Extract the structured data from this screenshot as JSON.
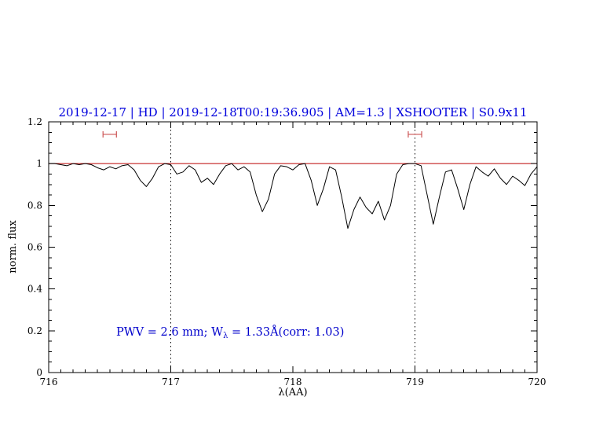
{
  "chart_data": {
    "type": "line",
    "title": "2019-12-17 | HD | 2019-12-18T00:19:36.905 | AM=1.3 | XSHOOTER | S0.9x11",
    "title_color": "#0000dd",
    "xlabel": "λ(AA)",
    "ylabel": "norm. flux",
    "xlim": [
      716,
      720
    ],
    "ylim": [
      0,
      1.2
    ],
    "xticks_major": [
      716,
      717,
      718,
      719,
      720
    ],
    "xtick_labels": [
      "716",
      "717",
      "718",
      "719",
      "720"
    ],
    "x_minor_step": 0.1,
    "yticks_major": [
      0,
      0.2,
      0.4,
      0.6,
      0.8,
      1.0,
      1.2
    ],
    "ytick_labels": [
      "0",
      "0.2",
      "0.4",
      "0.6",
      "0.8",
      "1",
      "1.2"
    ],
    "y_minor_step": 0.05,
    "grid": "off",
    "legend": "none",
    "vlines": {
      "x": [
        717,
        719
      ],
      "style": "dotted",
      "color": "#000000"
    },
    "hline": {
      "y": 1.0,
      "color": "#bb0000"
    },
    "range_markers": [
      {
        "x_center": 716.5,
        "half_width": 0.055,
        "y": 1.14,
        "color": "#cc5555"
      },
      {
        "x_center": 719.0,
        "half_width": 0.055,
        "y": 1.14,
        "color": "#cc5555"
      }
    ],
    "annotation": {
      "pre": "PWV = 2.6 mm; W",
      "sub": "λ",
      "post": " = 1.33Å(corr: 1.03)",
      "x": 716.55,
      "y": 0.18,
      "color": "#0000cc"
    },
    "series": [
      {
        "name": "normalized telluric spectrum",
        "color": "#000000",
        "points": [
          [
            716.0,
            1.0
          ],
          [
            716.05,
            1.0
          ],
          [
            716.1,
            0.995
          ],
          [
            716.15,
            0.99
          ],
          [
            716.2,
            1.0
          ],
          [
            716.25,
            0.995
          ],
          [
            716.3,
            1.0
          ],
          [
            716.35,
            0.995
          ],
          [
            716.4,
            0.98
          ],
          [
            716.45,
            0.97
          ],
          [
            716.5,
            0.985
          ],
          [
            716.55,
            0.975
          ],
          [
            716.6,
            0.99
          ],
          [
            716.65,
            0.995
          ],
          [
            716.7,
            0.97
          ],
          [
            716.75,
            0.92
          ],
          [
            716.8,
            0.89
          ],
          [
            716.85,
            0.93
          ],
          [
            716.9,
            0.985
          ],
          [
            716.95,
            1.0
          ],
          [
            717.0,
            0.995
          ],
          [
            717.05,
            0.95
          ],
          [
            717.1,
            0.96
          ],
          [
            717.15,
            0.99
          ],
          [
            717.2,
            0.97
          ],
          [
            717.25,
            0.91
          ],
          [
            717.3,
            0.93
          ],
          [
            717.35,
            0.9
          ],
          [
            717.4,
            0.95
          ],
          [
            717.45,
            0.99
          ],
          [
            717.5,
            1.0
          ],
          [
            717.55,
            0.97
          ],
          [
            717.6,
            0.985
          ],
          [
            717.65,
            0.96
          ],
          [
            717.7,
            0.85
          ],
          [
            717.75,
            0.77
          ],
          [
            717.8,
            0.83
          ],
          [
            717.85,
            0.95
          ],
          [
            717.9,
            0.99
          ],
          [
            717.95,
            0.985
          ],
          [
            718.0,
            0.97
          ],
          [
            718.05,
            0.995
          ],
          [
            718.1,
            1.0
          ],
          [
            718.15,
            0.92
          ],
          [
            718.2,
            0.8
          ],
          [
            718.25,
            0.88
          ],
          [
            718.3,
            0.985
          ],
          [
            718.35,
            0.97
          ],
          [
            718.4,
            0.84
          ],
          [
            718.45,
            0.69
          ],
          [
            718.5,
            0.78
          ],
          [
            718.55,
            0.84
          ],
          [
            718.6,
            0.79
          ],
          [
            718.65,
            0.76
          ],
          [
            718.7,
            0.82
          ],
          [
            718.75,
            0.73
          ],
          [
            718.8,
            0.8
          ],
          [
            718.85,
            0.95
          ],
          [
            718.9,
            0.995
          ],
          [
            718.95,
            1.0
          ],
          [
            719.0,
            1.0
          ],
          [
            719.05,
            0.99
          ],
          [
            719.1,
            0.85
          ],
          [
            719.15,
            0.71
          ],
          [
            719.2,
            0.84
          ],
          [
            719.25,
            0.96
          ],
          [
            719.3,
            0.97
          ],
          [
            719.35,
            0.88
          ],
          [
            719.4,
            0.78
          ],
          [
            719.45,
            0.9
          ],
          [
            719.5,
            0.985
          ],
          [
            719.55,
            0.96
          ],
          [
            719.6,
            0.94
          ],
          [
            719.65,
            0.975
          ],
          [
            719.7,
            0.93
          ],
          [
            719.75,
            0.9
          ],
          [
            719.8,
            0.94
          ],
          [
            719.85,
            0.92
          ],
          [
            719.9,
            0.895
          ],
          [
            719.95,
            0.95
          ],
          [
            720.0,
            0.985
          ]
        ]
      }
    ]
  }
}
